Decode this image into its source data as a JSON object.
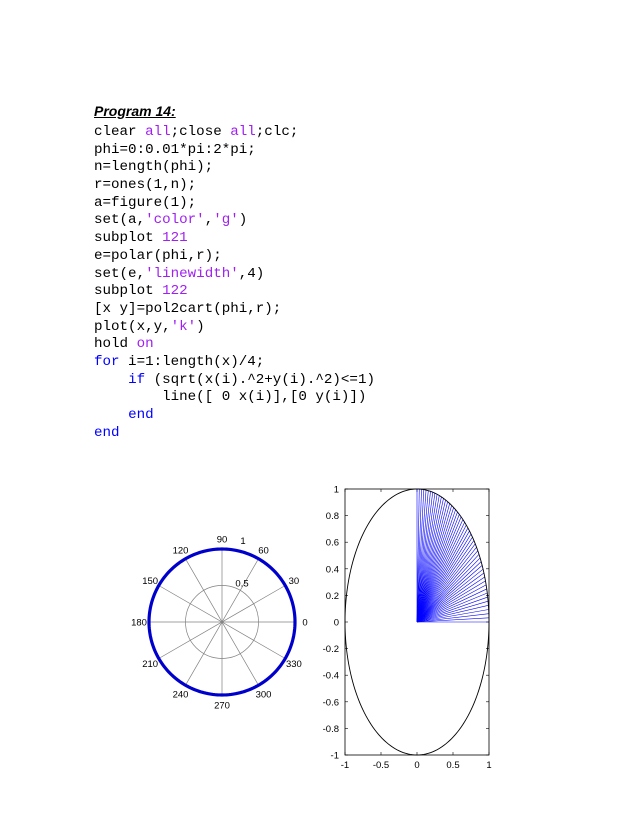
{
  "document": {
    "heading": "Program 14:",
    "code_lines": [
      [
        {
          "t": "clear ",
          "c": "n"
        },
        {
          "t": "all",
          "c": "s"
        },
        {
          "t": ";close ",
          "c": "n"
        },
        {
          "t": "all",
          "c": "s"
        },
        {
          "t": ";clc;",
          "c": "n"
        }
      ],
      [
        {
          "t": "phi=0:0.01*pi:2*pi;",
          "c": "n"
        }
      ],
      [
        {
          "t": "n=length(phi);",
          "c": "n"
        }
      ],
      [
        {
          "t": "r=ones(1,n);",
          "c": "n"
        }
      ],
      [
        {
          "t": "a=figure(1);",
          "c": "n"
        }
      ],
      [
        {
          "t": "set(a,",
          "c": "n"
        },
        {
          "t": "'color'",
          "c": "s"
        },
        {
          "t": ",",
          "c": "n"
        },
        {
          "t": "'g'",
          "c": "s"
        },
        {
          "t": ")",
          "c": "n"
        }
      ],
      [
        {
          "t": "subplot ",
          "c": "n"
        },
        {
          "t": "121",
          "c": "s"
        }
      ],
      [
        {
          "t": "e=polar(phi,r);",
          "c": "n"
        }
      ],
      [
        {
          "t": "set(e,",
          "c": "n"
        },
        {
          "t": "'linewidth'",
          "c": "s"
        },
        {
          "t": ",4)",
          "c": "n"
        }
      ],
      [
        {
          "t": "subplot ",
          "c": "n"
        },
        {
          "t": "122",
          "c": "s"
        }
      ],
      [
        {
          "t": "[x y]=pol2cart(phi,r);",
          "c": "n"
        }
      ],
      [
        {
          "t": "plot(x,y,",
          "c": "n"
        },
        {
          "t": "'k'",
          "c": "s"
        },
        {
          "t": ")",
          "c": "n"
        }
      ],
      [
        {
          "t": "hold ",
          "c": "n"
        },
        {
          "t": "on",
          "c": "s"
        }
      ],
      [
        {
          "t": "for",
          "c": "k"
        },
        {
          "t": " i=1:length(x)/4;",
          "c": "n"
        }
      ],
      [
        {
          "t": "    ",
          "c": "n"
        },
        {
          "t": "if",
          "c": "k"
        },
        {
          "t": " (sqrt(x(i).^2+y(i).^2)<=1)",
          "c": "n"
        }
      ],
      [
        {
          "t": "        line([ 0 x(i)],[0 y(i)])",
          "c": "n"
        }
      ],
      [
        {
          "t": "    ",
          "c": "n"
        },
        {
          "t": "end",
          "c": "k"
        }
      ],
      [
        {
          "t": "end",
          "c": "k"
        }
      ]
    ]
  },
  "colors": {
    "keyword": "#0000ff",
    "string": "#a020f0",
    "polar_line": "#0000cc",
    "rays": "#0000ff"
  },
  "chart_data": [
    {
      "type": "line",
      "polar": true,
      "angle_tick_labels": [
        "0",
        "30",
        "60",
        "90",
        "120",
        "150",
        "180",
        "210",
        "240",
        "270",
        "300",
        "330"
      ],
      "radius_tick_labels": [
        "0.5",
        "1"
      ],
      "series": [
        {
          "theta_range": [
            0,
            6.2832
          ],
          "r": 1,
          "linewidth": 4
        }
      ]
    },
    {
      "type": "line",
      "xlim": [
        -1,
        1
      ],
      "ylim": [
        -1,
        1
      ],
      "x_tick_labels": [
        "-1",
        "-0.5",
        "0",
        "0.5",
        "1"
      ],
      "y_tick_labels": [
        "-1",
        "-0.8",
        "-0.6",
        "-0.4",
        "-0.2",
        "0",
        "0.2",
        "0.4",
        "0.6",
        "0.8",
        "1"
      ],
      "series": [
        {
          "shape": "unit-circle",
          "color": "#000000"
        },
        {
          "shape": "rays-from-origin",
          "color": "#0000ff",
          "angle_step": 0.0314159,
          "count": 51
        }
      ]
    }
  ]
}
